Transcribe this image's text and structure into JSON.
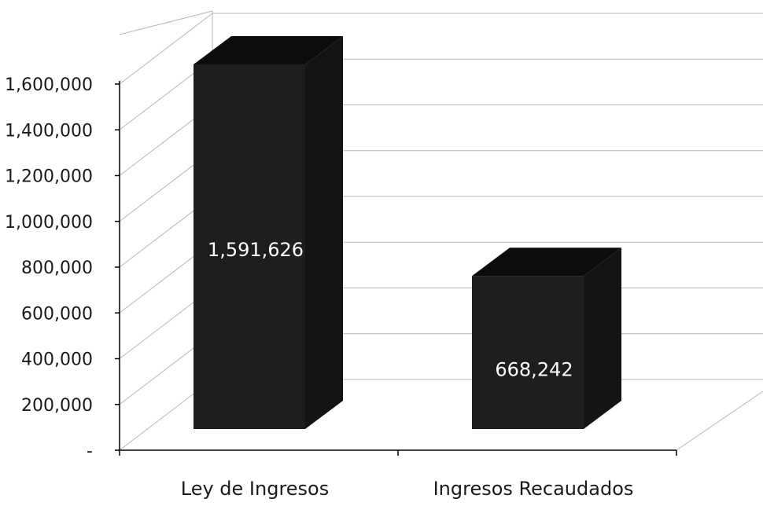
{
  "chart_data": {
    "type": "bar",
    "categories": [
      "Ley de Ingresos",
      "Ingresos Recaudados"
    ],
    "values": [
      1591626,
      668242
    ],
    "data_labels": [
      "1,591,626",
      "668,242"
    ],
    "ylim": [
      0,
      1600000
    ],
    "yticks": [
      0,
      200000,
      400000,
      600000,
      800000,
      1000000,
      1200000,
      1400000,
      1600000
    ],
    "ytick_labels": [
      "-",
      "200,000",
      "400,000",
      "600,000",
      "800,000",
      "1,000,000",
      "1,200,000",
      "1,400,000",
      "1,600,000"
    ],
    "title": "",
    "xlabel": "",
    "ylabel": "",
    "grid": true,
    "style": "3d-column",
    "colors": {
      "bar_front": "#1e1e1e",
      "bar_top": "#0c0c0c",
      "bar_side": "#141414",
      "grid": "#b7b7b7",
      "axis": "#000000",
      "data_label": "#ffffff",
      "tick_text": "#1a1a1a"
    }
  }
}
